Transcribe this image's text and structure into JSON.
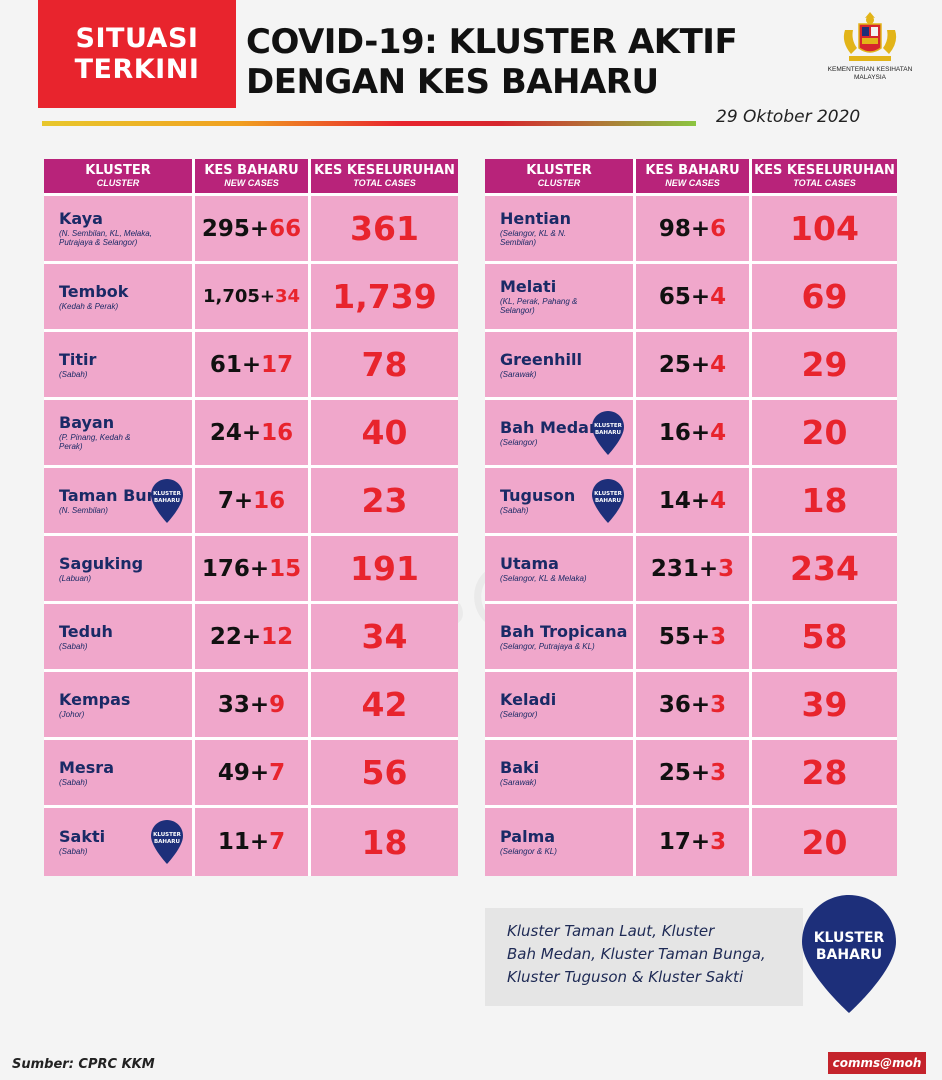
{
  "header": {
    "badge_line1": "SITUASI",
    "badge_line2": "TERKINI",
    "title_line1": "COVID-19: KLUSTER AKTIF",
    "title_line2": "DENGAN KES BAHARU",
    "ministry_line1": "KEMENTERIAN KESIHATAN",
    "ministry_line2": "MALAYSIA",
    "date": "29 Oktober 2020"
  },
  "columns": {
    "cluster": "KLUSTER",
    "cluster_sub": "CLUSTER",
    "new": "KES BAHARU",
    "new_sub": "NEW CASES",
    "total": "KES KESELURUHAN",
    "total_sub": "TOTAL CASES"
  },
  "pin_label_line1": "KLUSTER",
  "pin_label_line2": "BAHARU",
  "left_table": [
    {
      "name": "Kaya",
      "location": "(N. Sembilan, KL, Melaka, Putrajaya & Selangor)",
      "base": "295+",
      "plus": "66",
      "total": "361",
      "new_cluster": false
    },
    {
      "name": "Tembok",
      "location": "(Kedah & Perak)",
      "base": "1,705+",
      "plus": "34",
      "total": "1,739",
      "new_cluster": false
    },
    {
      "name": "Titir",
      "location": "(Sabah)",
      "base": "61+",
      "plus": "17",
      "total": "78",
      "new_cluster": false
    },
    {
      "name": "Bayan",
      "location": "(P. Pinang, Kedah & Perak)",
      "base": "24+",
      "plus": "16",
      "total": "40",
      "new_cluster": false
    },
    {
      "name": "Taman Bunga",
      "location": "(N. Sembilan)",
      "base": "7+",
      "plus": "16",
      "total": "23",
      "new_cluster": true
    },
    {
      "name": "Saguking",
      "location": "(Labuan)",
      "base": "176+",
      "plus": "15",
      "total": "191",
      "new_cluster": false
    },
    {
      "name": "Teduh",
      "location": "(Sabah)",
      "base": "22+",
      "plus": "12",
      "total": "34",
      "new_cluster": false
    },
    {
      "name": "Kempas",
      "location": "(Johor)",
      "base": "33+",
      "plus": "9",
      "total": "42",
      "new_cluster": false
    },
    {
      "name": "Mesra",
      "location": "(Sabah)",
      "base": "49+",
      "plus": "7",
      "total": "56",
      "new_cluster": false
    },
    {
      "name": "Sakti",
      "location": "(Sabah)",
      "base": "11+",
      "plus": "7",
      "total": "18",
      "new_cluster": true
    }
  ],
  "right_table": [
    {
      "name": "Hentian",
      "location": "(Selangor, KL & N. Sembilan)",
      "base": "98+",
      "plus": "6",
      "total": "104",
      "new_cluster": false
    },
    {
      "name": "Melati",
      "location": "(KL, Perak, Pahang & Selangor)",
      "base": "65+",
      "plus": "4",
      "total": "69",
      "new_cluster": false
    },
    {
      "name": "Greenhill",
      "location": "(Sarawak)",
      "base": "25+",
      "plus": "4",
      "total": "29",
      "new_cluster": false
    },
    {
      "name": "Bah Medan",
      "location": "(Selangor)",
      "base": "16+",
      "plus": "4",
      "total": "20",
      "new_cluster": true
    },
    {
      "name": "Tuguson",
      "location": "(Sabah)",
      "base": "14+",
      "plus": "4",
      "total": "18",
      "new_cluster": true
    },
    {
      "name": "Utama",
      "location": "(Selangor, KL & Melaka)",
      "base": "231+",
      "plus": "3",
      "total": "234",
      "new_cluster": false
    },
    {
      "name": "Bah Tropicana",
      "location": "(Selangor, Putrajaya & KL)",
      "base": "55+",
      "plus": "3",
      "total": "58",
      "new_cluster": false
    },
    {
      "name": "Keladi",
      "location": "(Selangor)",
      "base": "36+",
      "plus": "3",
      "total": "39",
      "new_cluster": false
    },
    {
      "name": "Baki",
      "location": "(Sarawak)",
      "base": "25+",
      "plus": "3",
      "total": "28",
      "new_cluster": false
    },
    {
      "name": "Palma",
      "location": "(Selangor & KL)",
      "base": "17+",
      "plus": "3",
      "total": "20",
      "new_cluster": false
    }
  ],
  "legend": {
    "line1": "Kluster Taman Laut, Kluster",
    "line2": "Bah Medan, Kluster Taman Bunga,",
    "line3": "Kluster Tuguson & Kluster Sakti",
    "pin_line1": "KLUSTER",
    "pin_line2": "BAHARU"
  },
  "footer": {
    "source": "Sumber: CPRC KKM",
    "tag": "comms@moh"
  },
  "watermark": "comms@moh",
  "colors": {
    "accent_red": "#e8242d",
    "header_magenta": "#b8237a",
    "cell_pink": "#f0a7cb",
    "pin_navy": "#1d2f7a"
  }
}
